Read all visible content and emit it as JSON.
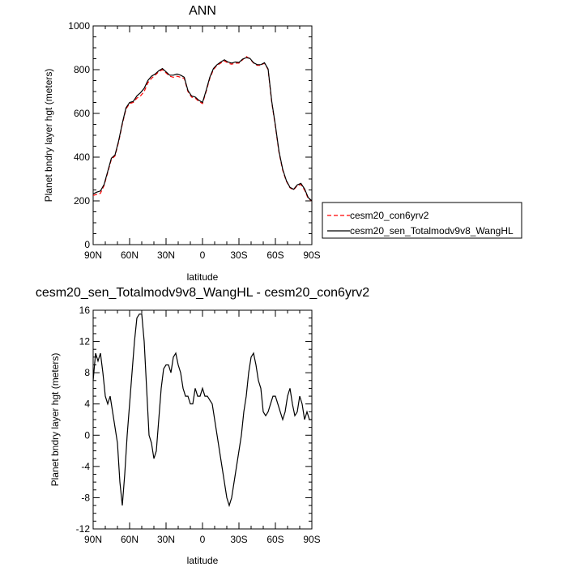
{
  "chart_data": [
    {
      "type": "line",
      "title": "ANN",
      "xlabel": "latitude",
      "ylabel": "Planet bndry layer hgt (meters)",
      "xlim": [
        90,
        -90
      ],
      "ylim": [
        0,
        1000
      ],
      "xticks": [
        {
          "value": 90,
          "label": "90N"
        },
        {
          "value": 60,
          "label": "60N"
        },
        {
          "value": 30,
          "label": "30N"
        },
        {
          "value": 0,
          "label": "0"
        },
        {
          "value": -30,
          "label": "30S"
        },
        {
          "value": -60,
          "label": "60S"
        },
        {
          "value": -90,
          "label": "90S"
        }
      ],
      "yticks": [
        {
          "value": 0,
          "label": "0"
        },
        {
          "value": 200,
          "label": "200"
        },
        {
          "value": 400,
          "label": "400"
        },
        {
          "value": 600,
          "label": "600"
        },
        {
          "value": 800,
          "label": "800"
        },
        {
          "value": 1000,
          "label": "1000"
        }
      ],
      "grid": false,
      "legend_position": "right",
      "series": [
        {
          "name": "cesm20_con6yrv2",
          "color": "#ff0000",
          "dash": true,
          "x": [
            90,
            87,
            84,
            81,
            78,
            75,
            72,
            69,
            66,
            63,
            60,
            57,
            54,
            51,
            48,
            45,
            42,
            39,
            36,
            33,
            30,
            27,
            24,
            21,
            18,
            15,
            12,
            9,
            6,
            3,
            0,
            -3,
            -6,
            -9,
            -12,
            -15,
            -18,
            -21,
            -24,
            -27,
            -30,
            -33,
            -36,
            -39,
            -42,
            -45,
            -48,
            -51,
            -54,
            -57,
            -60,
            -63,
            -66,
            -69,
            -72,
            -75,
            -78,
            -81,
            -84,
            -87,
            -90
          ],
          "y": [
            225,
            230,
            235,
            270,
            330,
            390,
            405,
            470,
            550,
            620,
            645,
            650,
            670,
            680,
            700,
            740,
            760,
            775,
            790,
            800,
            785,
            770,
            765,
            770,
            765,
            760,
            700,
            675,
            670,
            655,
            645,
            700,
            760,
            800,
            820,
            830,
            840,
            830,
            825,
            830,
            830,
            845,
            860,
            850,
            830,
            820,
            820,
            830,
            800,
            650,
            540,
            420,
            340,
            290,
            260,
            250,
            270,
            275,
            250,
            210,
            200
          ]
        },
        {
          "name": "cesm20_sen_Totalmodv9v8_WangHL",
          "color": "#000000",
          "dash": false,
          "x": [
            90,
            87,
            84,
            81,
            78,
            75,
            72,
            69,
            66,
            63,
            60,
            57,
            54,
            51,
            48,
            45,
            42,
            39,
            36,
            33,
            30,
            27,
            24,
            21,
            18,
            15,
            12,
            9,
            6,
            3,
            0,
            -3,
            -6,
            -9,
            -12,
            -15,
            -18,
            -21,
            -24,
            -27,
            -30,
            -33,
            -36,
            -39,
            -42,
            -45,
            -48,
            -51,
            -54,
            -57,
            -60,
            -63,
            -66,
            -69,
            -72,
            -75,
            -78,
            -81,
            -84,
            -87,
            -90
          ],
          "y": [
            232,
            240,
            245,
            275,
            335,
            395,
            410,
            475,
            555,
            625,
            650,
            655,
            680,
            695,
            715,
            750,
            770,
            780,
            795,
            805,
            790,
            775,
            775,
            780,
            775,
            765,
            705,
            680,
            675,
            660,
            650,
            705,
            765,
            805,
            823,
            835,
            845,
            835,
            830,
            835,
            833,
            848,
            855,
            852,
            832,
            823,
            823,
            832,
            803,
            655,
            545,
            425,
            345,
            293,
            262,
            253,
            273,
            280,
            255,
            215,
            200
          ]
        }
      ]
    },
    {
      "type": "line",
      "title": "cesm20_sen_Totalmodv9v8_WangHL - cesm20_con6yrv2",
      "xlabel": "latitude",
      "ylabel": "Planet bndry layer hgt (meters)",
      "xlim": [
        90,
        -90
      ],
      "ylim": [
        -12,
        16
      ],
      "xticks": [
        {
          "value": 90,
          "label": "90N"
        },
        {
          "value": 60,
          "label": "60N"
        },
        {
          "value": 30,
          "label": "30N"
        },
        {
          "value": 0,
          "label": "0"
        },
        {
          "value": -30,
          "label": "30S"
        },
        {
          "value": -60,
          "label": "60S"
        },
        {
          "value": -90,
          "label": "90S"
        }
      ],
      "yticks": [
        {
          "value": -12,
          "label": "-12"
        },
        {
          "value": -8,
          "label": "-8"
        },
        {
          "value": -4,
          "label": "-4"
        },
        {
          "value": 0,
          "label": "0"
        },
        {
          "value": 4,
          "label": "4"
        },
        {
          "value": 8,
          "label": "8"
        },
        {
          "value": 12,
          "label": "12"
        },
        {
          "value": 16,
          "label": "16"
        }
      ],
      "grid": false,
      "series": [
        {
          "color": "#000000",
          "dash": false,
          "x": [
            90,
            88,
            86,
            84,
            82,
            80,
            78,
            76,
            74,
            72,
            70,
            68,
            66,
            64,
            62,
            60,
            58,
            56,
            54,
            52,
            50,
            48,
            46,
            44,
            42,
            40,
            38,
            36,
            34,
            32,
            30,
            28,
            26,
            24,
            22,
            20,
            18,
            16,
            14,
            12,
            10,
            8,
            6,
            4,
            2,
            0,
            -2,
            -4,
            -6,
            -8,
            -10,
            -12,
            -14,
            -16,
            -18,
            -20,
            -22,
            -24,
            -26,
            -28,
            -30,
            -32,
            -34,
            -36,
            -38,
            -40,
            -42,
            -44,
            -46,
            -48,
            -50,
            -52,
            -54,
            -56,
            -58,
            -60,
            -62,
            -64,
            -66,
            -68,
            -70,
            -72,
            -74,
            -76,
            -78,
            -80,
            -82,
            -84,
            -86,
            -88,
            -90
          ],
          "y": [
            7,
            10.5,
            9.5,
            10.5,
            8,
            5,
            4,
            5,
            3,
            1,
            -1,
            -6,
            -9,
            -5,
            0,
            4,
            8,
            12,
            15,
            15.5,
            15.5,
            12,
            6,
            0,
            -1,
            -3,
            -2,
            2,
            6,
            8.5,
            9,
            9,
            8,
            10,
            10.5,
            9,
            8,
            6,
            5,
            5,
            4,
            4,
            6,
            5,
            5,
            6,
            5,
            5,
            4.5,
            4,
            2,
            0,
            -2,
            -4,
            -6,
            -8,
            -9,
            -8,
            -6,
            -4,
            -2,
            0,
            3,
            5,
            8,
            10,
            10.5,
            9,
            7,
            6,
            3,
            2.5,
            3,
            4,
            5,
            5,
            4,
            3,
            2,
            3,
            5,
            6,
            4,
            2.5,
            3,
            5,
            4,
            2,
            3,
            2,
            2
          ]
        }
      ]
    }
  ]
}
